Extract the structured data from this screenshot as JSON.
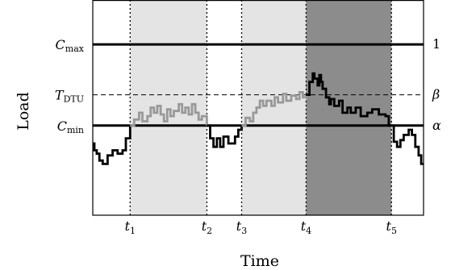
{
  "chart_data": {
    "type": "line",
    "title": "",
    "xlabel": "Time",
    "ylabel": "Load",
    "xlim": [
      0,
      1
    ],
    "ylim": [
      0,
      1.26
    ],
    "grid": false,
    "legend": "none",
    "x_ticks": [
      {
        "main": "t",
        "sub": "1",
        "x": 0.113
      },
      {
        "main": "t",
        "sub": "2",
        "x": 0.345
      },
      {
        "main": "t",
        "sub": "3",
        "x": 0.45
      },
      {
        "main": "t",
        "sub": "4",
        "x": 0.645
      },
      {
        "main": "t",
        "sub": "5",
        "x": 0.903
      }
    ],
    "thresholds": [
      {
        "left": "C",
        "left_sub": "max",
        "right": "1",
        "value": 1.0,
        "style": "solid"
      },
      {
        "left": "T",
        "left_sub": "DTU",
        "right": "β",
        "value": 0.705,
        "style": "dashed"
      },
      {
        "left": "C",
        "left_sub": "min",
        "right": "α",
        "value": 0.525,
        "style": "solid"
      }
    ],
    "shaded_regions": [
      {
        "x0": 0.113,
        "x1": 0.345,
        "color": "#e4e4e4"
      },
      {
        "x0": 0.45,
        "x1": 0.645,
        "color": "#e4e4e4"
      },
      {
        "x0": 0.645,
        "x1": 0.903,
        "color": "#8c8c8c"
      }
    ],
    "series": [
      {
        "color": "#000000",
        "points": [
          [
            0,
            0.42
          ],
          [
            0.005,
            0.42
          ],
          [
            0.005,
            0.38
          ],
          [
            0.012,
            0.38
          ],
          [
            0.012,
            0.36
          ],
          [
            0.02,
            0.36
          ],
          [
            0.02,
            0.32
          ],
          [
            0.03,
            0.32
          ],
          [
            0.03,
            0.3
          ],
          [
            0.045,
            0.3
          ],
          [
            0.045,
            0.35
          ],
          [
            0.06,
            0.35
          ],
          [
            0.06,
            0.38
          ],
          [
            0.075,
            0.38
          ],
          [
            0.075,
            0.36
          ],
          [
            0.09,
            0.36
          ],
          [
            0.09,
            0.38
          ],
          [
            0.1,
            0.38
          ],
          [
            0.1,
            0.45
          ],
          [
            0.113,
            0.45
          ],
          [
            0.113,
            0.525
          ]
        ]
      },
      {
        "color": "#999999",
        "points": [
          [
            0.113,
            0.525
          ],
          [
            0.125,
            0.525
          ],
          [
            0.125,
            0.56
          ],
          [
            0.14,
            0.56
          ],
          [
            0.14,
            0.6
          ],
          [
            0.15,
            0.6
          ],
          [
            0.15,
            0.55
          ],
          [
            0.165,
            0.55
          ],
          [
            0.165,
            0.58
          ],
          [
            0.175,
            0.58
          ],
          [
            0.175,
            0.63
          ],
          [
            0.185,
            0.63
          ],
          [
            0.185,
            0.6
          ],
          [
            0.195,
            0.6
          ],
          [
            0.195,
            0.64
          ],
          [
            0.205,
            0.64
          ],
          [
            0.205,
            0.59
          ],
          [
            0.215,
            0.59
          ],
          [
            0.215,
            0.55
          ],
          [
            0.225,
            0.55
          ],
          [
            0.225,
            0.62
          ],
          [
            0.235,
            0.62
          ],
          [
            0.235,
            0.58
          ],
          [
            0.245,
            0.58
          ],
          [
            0.245,
            0.61
          ],
          [
            0.26,
            0.61
          ],
          [
            0.26,
            0.65
          ],
          [
            0.27,
            0.65
          ],
          [
            0.27,
            0.6
          ],
          [
            0.28,
            0.6
          ],
          [
            0.28,
            0.63
          ],
          [
            0.29,
            0.63
          ],
          [
            0.29,
            0.59
          ],
          [
            0.3,
            0.59
          ],
          [
            0.3,
            0.65
          ],
          [
            0.31,
            0.65
          ],
          [
            0.31,
            0.6
          ],
          [
            0.32,
            0.6
          ],
          [
            0.32,
            0.56
          ],
          [
            0.33,
            0.56
          ],
          [
            0.33,
            0.58
          ],
          [
            0.345,
            0.58
          ],
          [
            0.345,
            0.525
          ]
        ]
      },
      {
        "color": "#000000",
        "points": [
          [
            0.345,
            0.525
          ],
          [
            0.355,
            0.525
          ],
          [
            0.355,
            0.45
          ],
          [
            0.365,
            0.45
          ],
          [
            0.365,
            0.4
          ],
          [
            0.375,
            0.4
          ],
          [
            0.375,
            0.45
          ],
          [
            0.385,
            0.45
          ],
          [
            0.385,
            0.4
          ],
          [
            0.395,
            0.4
          ],
          [
            0.395,
            0.46
          ],
          [
            0.41,
            0.46
          ],
          [
            0.41,
            0.42
          ],
          [
            0.42,
            0.42
          ],
          [
            0.42,
            0.42
          ],
          [
            0.43,
            0.42
          ],
          [
            0.43,
            0.46
          ],
          [
            0.44,
            0.46
          ],
          [
            0.44,
            0.5
          ],
          [
            0.45,
            0.5
          ],
          [
            0.45,
            0.525
          ]
        ]
      },
      {
        "color": "#999999",
        "points": [
          [
            0.45,
            0.525
          ],
          [
            0.462,
            0.525
          ],
          [
            0.462,
            0.57
          ],
          [
            0.475,
            0.57
          ],
          [
            0.475,
            0.55
          ],
          [
            0.485,
            0.55
          ],
          [
            0.485,
            0.6
          ],
          [
            0.495,
            0.6
          ],
          [
            0.495,
            0.63
          ],
          [
            0.505,
            0.63
          ],
          [
            0.505,
            0.67
          ],
          [
            0.515,
            0.67
          ],
          [
            0.515,
            0.64
          ],
          [
            0.525,
            0.64
          ],
          [
            0.525,
            0.67
          ],
          [
            0.54,
            0.67
          ],
          [
            0.54,
            0.64
          ],
          [
            0.55,
            0.64
          ],
          [
            0.55,
            0.69
          ],
          [
            0.56,
            0.69
          ],
          [
            0.56,
            0.66
          ],
          [
            0.575,
            0.66
          ],
          [
            0.575,
            0.71
          ],
          [
            0.585,
            0.71
          ],
          [
            0.585,
            0.67
          ],
          [
            0.6,
            0.67
          ],
          [
            0.6,
            0.7
          ],
          [
            0.615,
            0.7
          ],
          [
            0.615,
            0.68
          ],
          [
            0.625,
            0.68
          ],
          [
            0.625,
            0.72
          ],
          [
            0.635,
            0.72
          ],
          [
            0.635,
            0.69
          ],
          [
            0.645,
            0.69
          ],
          [
            0.645,
            0.705
          ]
        ]
      },
      {
        "color": "#000000",
        "points": [
          [
            0.645,
            0.705
          ],
          [
            0.655,
            0.705
          ],
          [
            0.655,
            0.78
          ],
          [
            0.665,
            0.78
          ],
          [
            0.665,
            0.83
          ],
          [
            0.67,
            0.83
          ],
          [
            0.67,
            0.8
          ],
          [
            0.68,
            0.8
          ],
          [
            0.68,
            0.76
          ],
          [
            0.685,
            0.76
          ],
          [
            0.685,
            0.82
          ],
          [
            0.69,
            0.82
          ],
          [
            0.69,
            0.78
          ],
          [
            0.695,
            0.78
          ],
          [
            0.695,
            0.74
          ],
          [
            0.705,
            0.74
          ],
          [
            0.705,
            0.69
          ],
          [
            0.715,
            0.69
          ],
          [
            0.715,
            0.65
          ],
          [
            0.72,
            0.65
          ],
          [
            0.72,
            0.68
          ],
          [
            0.73,
            0.68
          ],
          [
            0.73,
            0.64
          ],
          [
            0.745,
            0.64
          ],
          [
            0.745,
            0.67
          ],
          [
            0.755,
            0.67
          ],
          [
            0.755,
            0.6
          ],
          [
            0.77,
            0.6
          ],
          [
            0.77,
            0.63
          ],
          [
            0.78,
            0.63
          ],
          [
            0.78,
            0.6
          ],
          [
            0.795,
            0.6
          ],
          [
            0.795,
            0.63
          ],
          [
            0.81,
            0.63
          ],
          [
            0.81,
            0.58
          ],
          [
            0.83,
            0.58
          ],
          [
            0.83,
            0.6
          ],
          [
            0.845,
            0.6
          ],
          [
            0.845,
            0.62
          ],
          [
            0.865,
            0.62
          ],
          [
            0.865,
            0.59
          ],
          [
            0.885,
            0.59
          ],
          [
            0.885,
            0.58
          ],
          [
            0.895,
            0.58
          ],
          [
            0.895,
            0.525
          ],
          [
            0.903,
            0.525
          ]
        ]
      },
      {
        "color": "#000000",
        "points": [
          [
            0.903,
            0.525
          ],
          [
            0.91,
            0.525
          ],
          [
            0.91,
            0.43
          ],
          [
            0.92,
            0.43
          ],
          [
            0.92,
            0.4
          ],
          [
            0.93,
            0.4
          ],
          [
            0.93,
            0.44
          ],
          [
            0.94,
            0.44
          ],
          [
            0.94,
            0.47
          ],
          [
            0.955,
            0.47
          ],
          [
            0.955,
            0.5
          ],
          [
            0.965,
            0.5
          ],
          [
            0.965,
            0.47
          ],
          [
            0.975,
            0.47
          ],
          [
            0.975,
            0.4
          ],
          [
            0.985,
            0.4
          ],
          [
            0.985,
            0.35
          ],
          [
            0.993,
            0.35
          ],
          [
            0.993,
            0.3
          ],
          [
            1.0,
            0.3
          ]
        ]
      }
    ]
  }
}
